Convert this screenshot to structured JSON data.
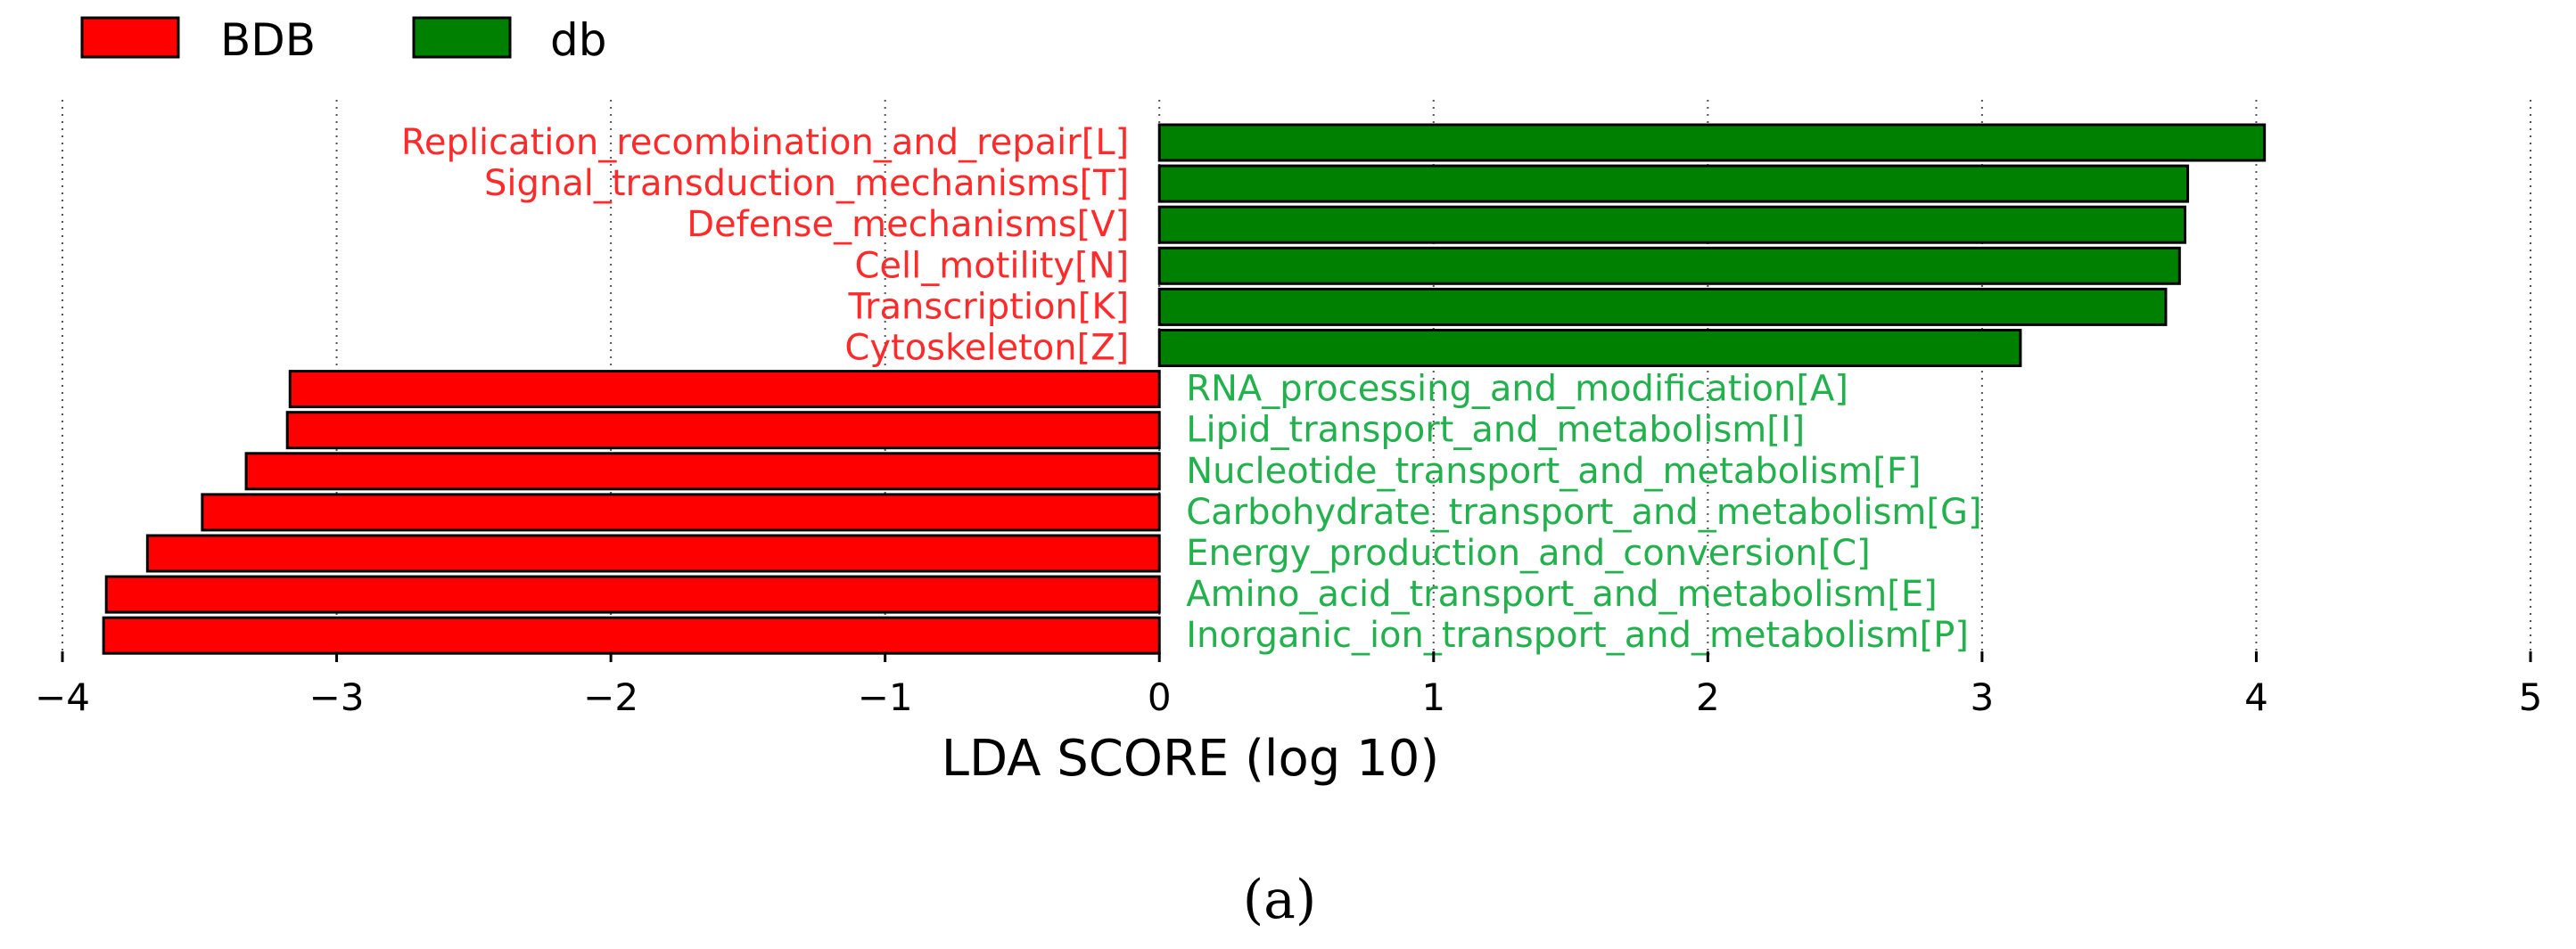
{
  "chart_data": {
    "type": "bar",
    "orientation": "horizontal",
    "xlabel": "LDA SCORE (log 10)",
    "xlim": [
      -4,
      5
    ],
    "xticks": [
      -4,
      -3,
      -2,
      -1,
      0,
      1,
      2,
      3,
      4,
      5
    ],
    "xtick_labels": [
      "−4",
      "−3",
      "−2",
      "−1",
      "0",
      "1",
      "2",
      "3",
      "4",
      "5"
    ],
    "grid": "vertical dotted",
    "legend_position": "top-left",
    "legend": [
      {
        "name": "BDB",
        "color": "#ff0000"
      },
      {
        "name": "db",
        "color": "#008000"
      }
    ],
    "label_colors": {
      "db": "#ff2a2a",
      "BDB": "#22b14c"
    },
    "bars": [
      {
        "category": "Replication_recombination_and_repair[L]",
        "group": "db",
        "value": 4.03
      },
      {
        "category": "Signal_transduction_mechanisms[T]",
        "group": "db",
        "value": 3.75
      },
      {
        "category": "Defense_mechanisms[V]",
        "group": "db",
        "value": 3.74
      },
      {
        "category": "Cell_motility[N]",
        "group": "db",
        "value": 3.72
      },
      {
        "category": "Transcription[K]",
        "group": "db",
        "value": 3.67
      },
      {
        "category": "Cytoskeleton[Z]",
        "group": "db",
        "value": 3.14
      },
      {
        "category": "RNA_processing_and_modification[A]",
        "group": "BDB",
        "value": -3.17
      },
      {
        "category": "Lipid_transport_and_metabolism[I]",
        "group": "BDB",
        "value": -3.18
      },
      {
        "category": "Nucleotide_transport_and_metabolism[F]",
        "group": "BDB",
        "value": -3.33
      },
      {
        "category": "Carbohydrate_transport_and_metabolism[G]",
        "group": "BDB",
        "value": -3.49
      },
      {
        "category": "Energy_production_and_conversion[C]",
        "group": "BDB",
        "value": -3.69
      },
      {
        "category": "Amino_acid_transport_and_metabolism[E]",
        "group": "BDB",
        "value": -3.84
      },
      {
        "category": "Inorganic_ion_transport_and_metabolism[P]",
        "group": "BDB",
        "value": -3.85
      }
    ]
  },
  "caption": "(a)"
}
